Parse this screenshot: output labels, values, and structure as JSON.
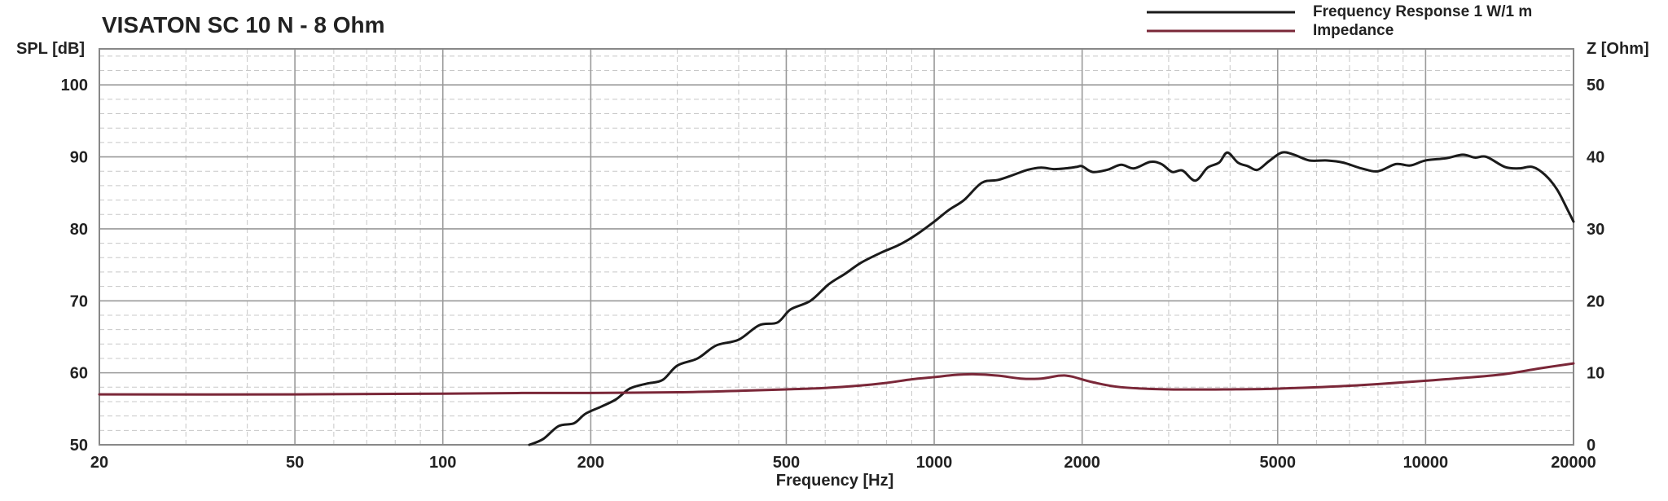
{
  "chart_data": {
    "type": "line",
    "title": "VISATON SC 10 N - 8 Ohm",
    "xlabel": "Frequency [Hz]",
    "ylabel_left": "SPL [dB]",
    "ylabel_right": "Z [Ohm]",
    "x_scale": "log",
    "xlim": [
      20,
      20000
    ],
    "ylim_left": [
      50,
      105
    ],
    "ylim_right": [
      0,
      55
    ],
    "x_ticks": [
      20,
      50,
      100,
      200,
      500,
      1000,
      2000,
      5000,
      10000,
      20000
    ],
    "x_tick_labels": [
      "20",
      "50",
      "100",
      "200",
      "500",
      "1000",
      "2000",
      "5000",
      "10000",
      "20000"
    ],
    "y_left_ticks": [
      50,
      60,
      70,
      80,
      90,
      100
    ],
    "y_left_tick_labels": [
      "50",
      "60",
      "70",
      "80",
      "90",
      "100"
    ],
    "y_right_ticks": [
      0,
      10,
      20,
      30,
      40,
      50
    ],
    "y_right_tick_labels": [
      "0",
      "10",
      "20",
      "30",
      "40",
      "50"
    ],
    "grid": true,
    "legend_position": "top-right",
    "series": [
      {
        "name": "Frequency Response 1 W/1 m",
        "axis": "left",
        "color": "#1a1a1a",
        "points": [
          [
            150,
            50.0
          ],
          [
            160,
            50.8
          ],
          [
            172,
            52.6
          ],
          [
            185,
            53.0
          ],
          [
            195,
            54.3
          ],
          [
            210,
            55.3
          ],
          [
            225,
            56.3
          ],
          [
            240,
            57.8
          ],
          [
            260,
            58.5
          ],
          [
            280,
            59.0
          ],
          [
            300,
            61.0
          ],
          [
            330,
            62.0
          ],
          [
            360,
            63.8
          ],
          [
            400,
            64.6
          ],
          [
            440,
            66.6
          ],
          [
            480,
            67.0
          ],
          [
            510,
            68.8
          ],
          [
            560,
            70.0
          ],
          [
            610,
            72.3
          ],
          [
            660,
            73.8
          ],
          [
            710,
            75.3
          ],
          [
            780,
            76.7
          ],
          [
            850,
            77.8
          ],
          [
            920,
            79.2
          ],
          [
            1000,
            81.0
          ],
          [
            1070,
            82.6
          ],
          [
            1150,
            84.0
          ],
          [
            1250,
            86.4
          ],
          [
            1350,
            86.8
          ],
          [
            1450,
            87.5
          ],
          [
            1550,
            88.2
          ],
          [
            1650,
            88.5
          ],
          [
            1750,
            88.3
          ],
          [
            1850,
            88.4
          ],
          [
            1950,
            88.6
          ],
          [
            2000,
            88.7
          ],
          [
            2100,
            87.9
          ],
          [
            2250,
            88.2
          ],
          [
            2400,
            88.9
          ],
          [
            2550,
            88.4
          ],
          [
            2750,
            89.3
          ],
          [
            2900,
            89.0
          ],
          [
            3050,
            87.9
          ],
          [
            3200,
            88.1
          ],
          [
            3400,
            86.7
          ],
          [
            3600,
            88.5
          ],
          [
            3800,
            89.2
          ],
          [
            3950,
            90.6
          ],
          [
            4150,
            89.2
          ],
          [
            4350,
            88.7
          ],
          [
            4550,
            88.2
          ],
          [
            4800,
            89.4
          ],
          [
            5100,
            90.6
          ],
          [
            5400,
            90.3
          ],
          [
            5800,
            89.5
          ],
          [
            6300,
            89.5
          ],
          [
            6800,
            89.2
          ],
          [
            7400,
            88.4
          ],
          [
            8000,
            88.0
          ],
          [
            8700,
            89.0
          ],
          [
            9300,
            88.8
          ],
          [
            10000,
            89.5
          ],
          [
            11000,
            89.8
          ],
          [
            11900,
            90.3
          ],
          [
            12600,
            89.9
          ],
          [
            13300,
            90.0
          ],
          [
            14500,
            88.6
          ],
          [
            15500,
            88.4
          ],
          [
            16500,
            88.6
          ],
          [
            17500,
            87.5
          ],
          [
            18500,
            85.5
          ],
          [
            19500,
            82.5
          ],
          [
            20000,
            81.0
          ]
        ]
      },
      {
        "name": "Impedance",
        "axis": "right",
        "color": "#7a2738",
        "points": [
          [
            20,
            7.0
          ],
          [
            50,
            7.0
          ],
          [
            100,
            7.1
          ],
          [
            150,
            7.2
          ],
          [
            200,
            7.2
          ],
          [
            300,
            7.3
          ],
          [
            400,
            7.5
          ],
          [
            500,
            7.7
          ],
          [
            600,
            7.9
          ],
          [
            700,
            8.2
          ],
          [
            800,
            8.6
          ],
          [
            900,
            9.1
          ],
          [
            1000,
            9.4
          ],
          [
            1100,
            9.7
          ],
          [
            1200,
            9.8
          ],
          [
            1350,
            9.6
          ],
          [
            1500,
            9.2
          ],
          [
            1650,
            9.2
          ],
          [
            1800,
            9.6
          ],
          [
            1900,
            9.5
          ],
          [
            2100,
            8.7
          ],
          [
            2400,
            8.0
          ],
          [
            3000,
            7.7
          ],
          [
            4000,
            7.7
          ],
          [
            5000,
            7.8
          ],
          [
            7000,
            8.2
          ],
          [
            10000,
            8.9
          ],
          [
            14000,
            9.7
          ],
          [
            17000,
            10.6
          ],
          [
            20000,
            11.3
          ]
        ]
      }
    ]
  }
}
